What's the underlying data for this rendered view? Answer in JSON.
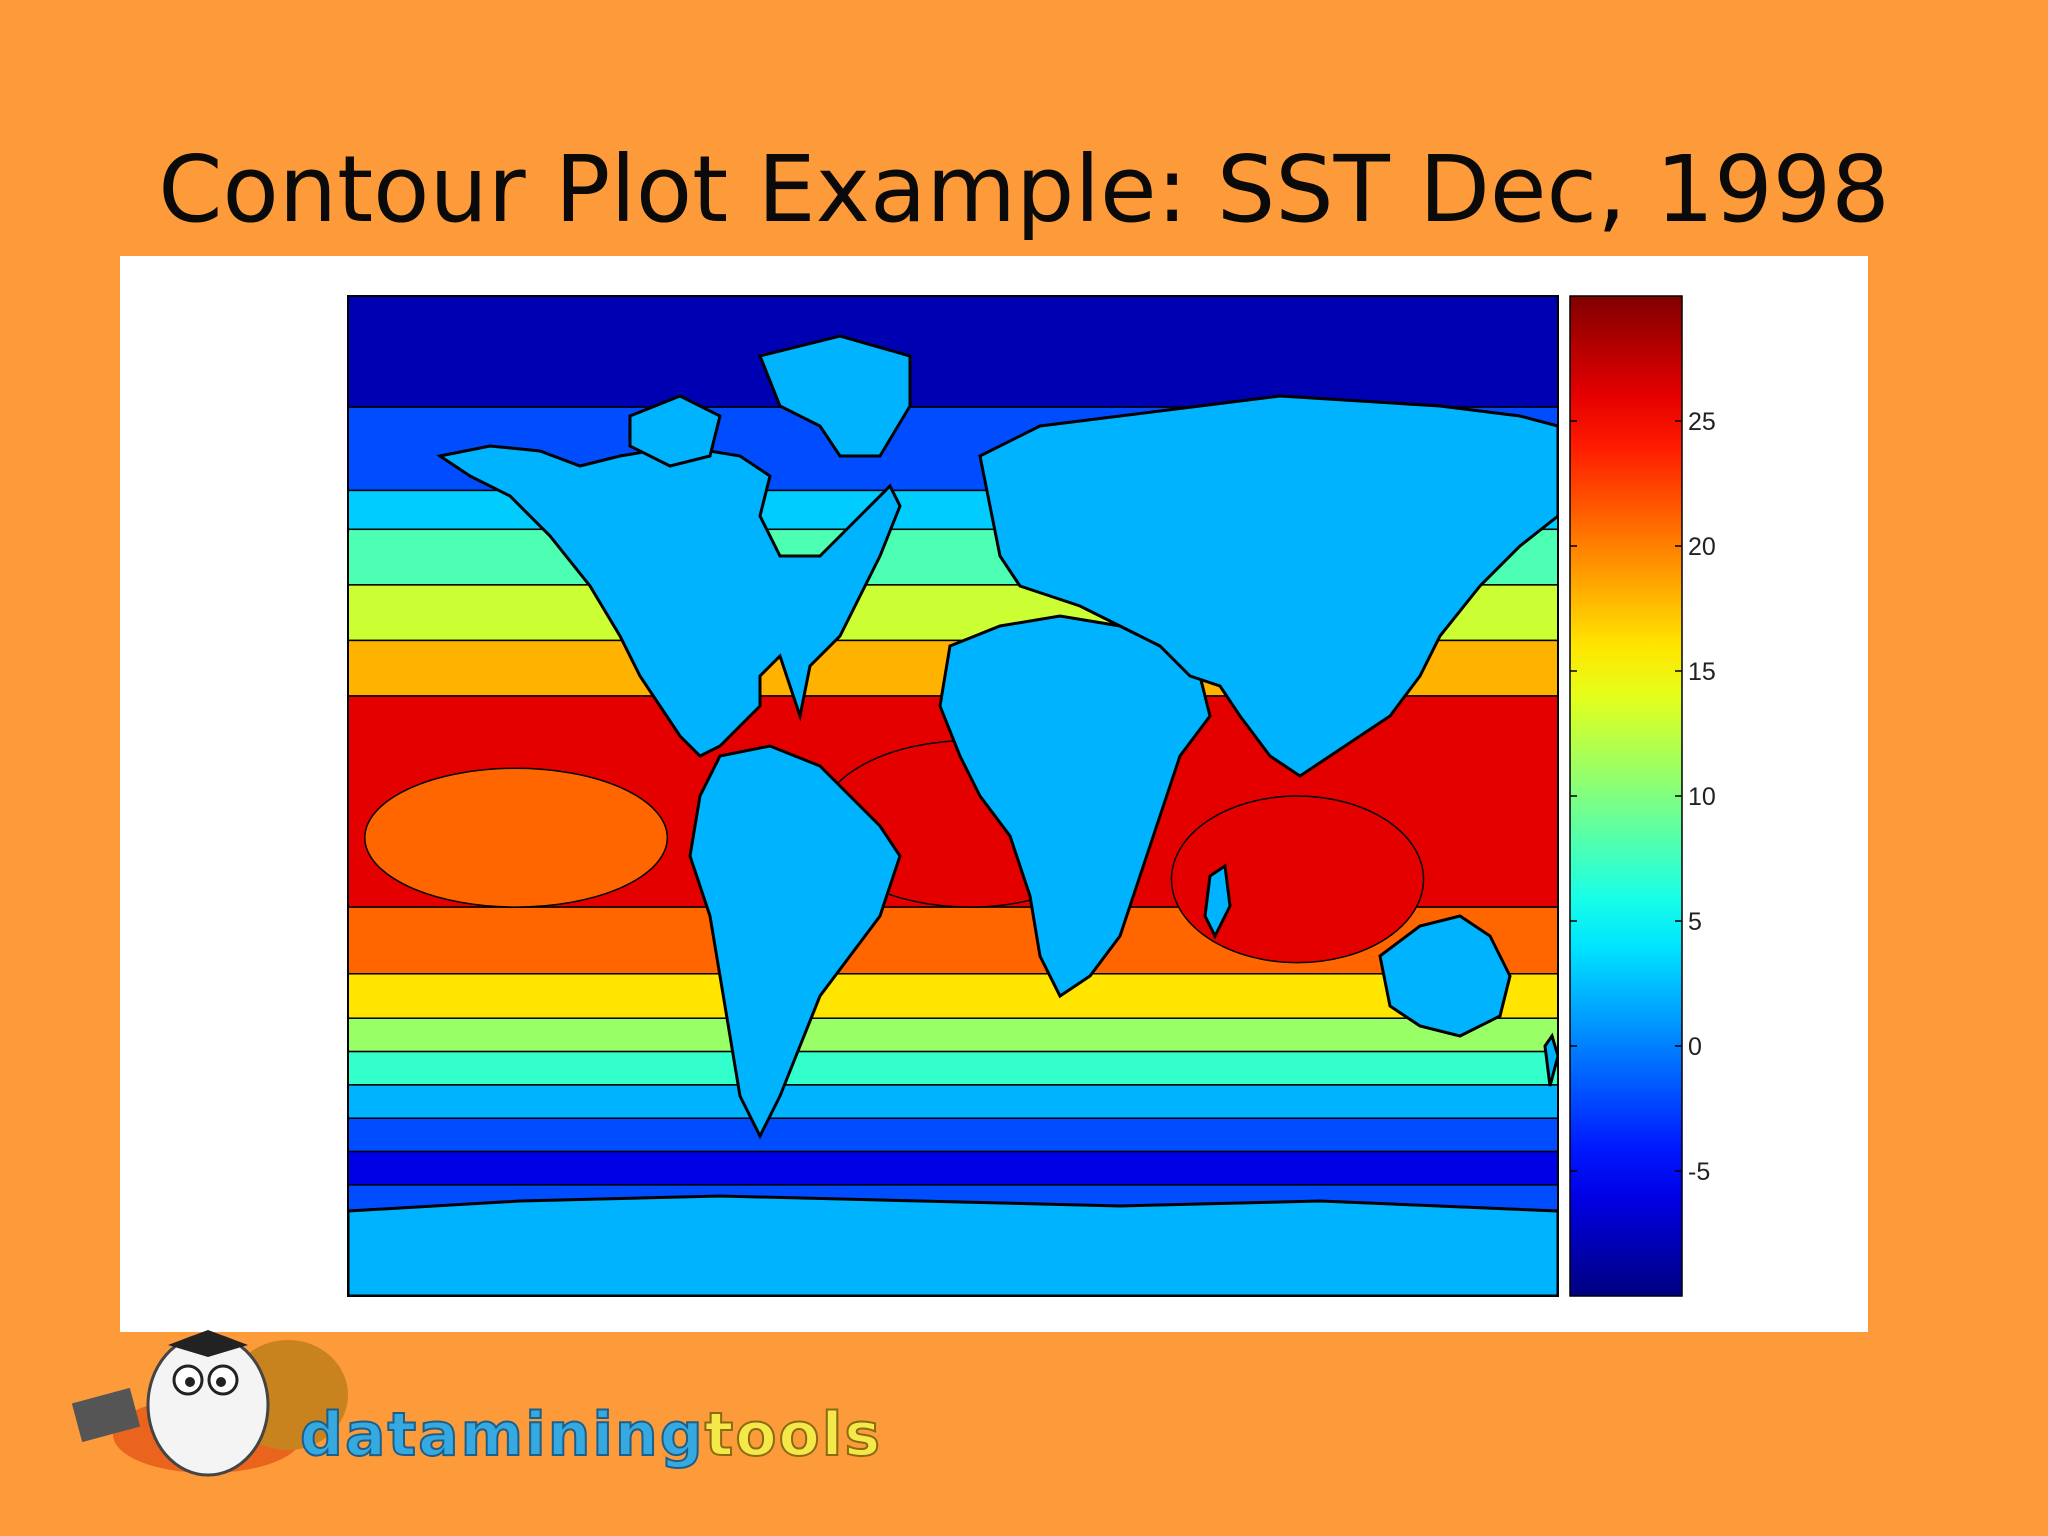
{
  "slide": {
    "title": "Contour Plot Example: SST Dec, 1998",
    "background_color": "#fd9a3a",
    "panel_color": "#ffffff"
  },
  "logo": {
    "name_part1": "datamining",
    "name_part2": "tools",
    "icon": "owl-mascot-icon"
  },
  "chart_data": {
    "type": "heatmap",
    "title": "",
    "xlabel": "",
    "ylabel": "",
    "variable": "SST",
    "colormap": "jet",
    "colorbar": {
      "location": "right",
      "range": [
        -10,
        30
      ],
      "ticks": [
        -5,
        0,
        5,
        10,
        15,
        20,
        25
      ],
      "tick_labels": [
        "-5",
        "0",
        "5",
        "10",
        "15",
        "20",
        "25"
      ]
    },
    "contour_levels": [
      -10,
      -5,
      0,
      5,
      10,
      15,
      20,
      25,
      30
    ],
    "x_range": [
      0,
      360
    ],
    "y_range": [
      -90,
      90
    ],
    "land": "masked",
    "zonal_bands": [
      {
        "lat_range": [
          70,
          90
        ],
        "value": -8
      },
      {
        "lat_range": [
          55,
          70
        ],
        "value": -2
      },
      {
        "lat_range": [
          48,
          55
        ],
        "value": 3
      },
      {
        "lat_range": [
          38,
          48
        ],
        "value": 8
      },
      {
        "lat_range": [
          28,
          38
        ],
        "value": 13
      },
      {
        "lat_range": [
          18,
          28
        ],
        "value": 18
      },
      {
        "lat_range": [
          -20,
          18
        ],
        "value": 26
      },
      {
        "lat_range": [
          -32,
          -20
        ],
        "value": 21
      },
      {
        "lat_range": [
          -40,
          -32
        ],
        "value": 16
      },
      {
        "lat_range": [
          -46,
          -40
        ],
        "value": 11
      },
      {
        "lat_range": [
          -52,
          -46
        ],
        "value": 7
      },
      {
        "lat_range": [
          -58,
          -52
        ],
        "value": 2
      },
      {
        "lat_range": [
          -64,
          -58
        ],
        "value": -2
      },
      {
        "lat_range": [
          -70,
          -64
        ],
        "value": -6
      },
      {
        "lat_range": [
          -90,
          -70
        ],
        "value": -2
      }
    ],
    "warm_pools": [
      {
        "name": "",
        "lon_range": [
          5,
          95
        ],
        "lat_range": [
          -20,
          5
        ],
        "value": 21
      },
      {
        "name": "",
        "lon_range": [
          140,
          230
        ],
        "lat_range": [
          -20,
          10
        ],
        "value": 26
      },
      {
        "name": "",
        "lon_range": [
          245,
          320
        ],
        "lat_range": [
          -30,
          0
        ],
        "value": 26
      }
    ]
  }
}
